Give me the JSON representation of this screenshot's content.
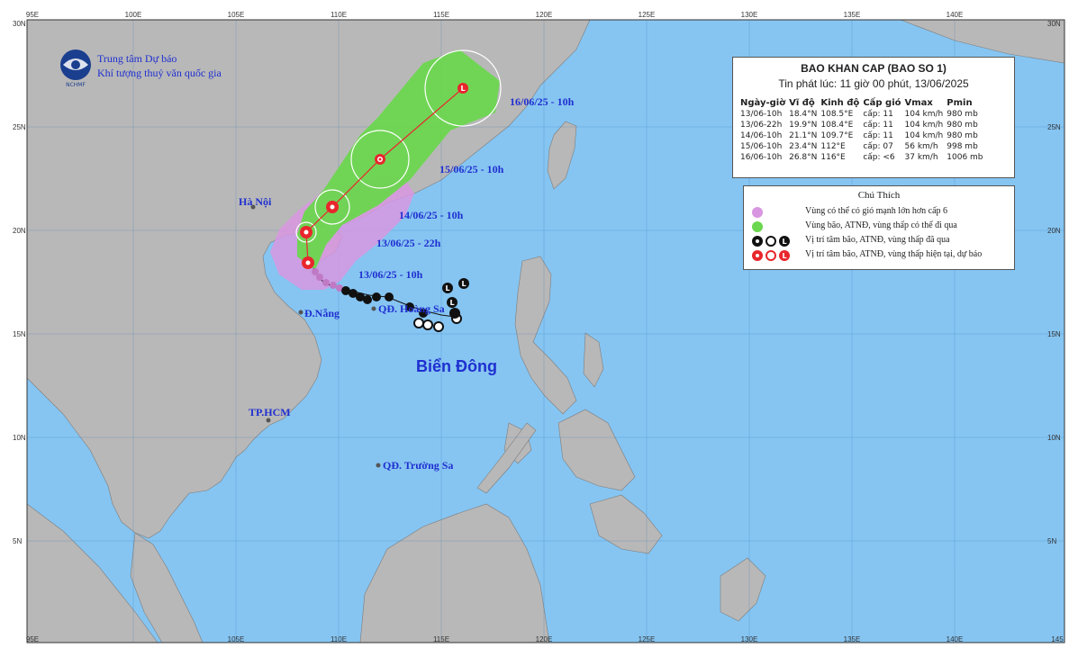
{
  "organization": {
    "name_line1": "Trung tâm Dự báo",
    "name_line2": "Khí tượng thuỷ văn quốc gia",
    "logo_text": "NCHMF"
  },
  "bulletin": {
    "title": "BAO KHAN CAP (BAO SO 1)",
    "issued": "Tin phát lúc: 11 giờ 00 phút, 13/06/2025",
    "columns": [
      "Ngày-giờ",
      "Vĩ độ",
      "Kinh độ",
      "Cấp gió",
      "Vmax",
      "Pmin"
    ],
    "rows": [
      [
        "13/06-10h",
        "18.4°N",
        "108.5°E",
        "cấp: 11",
        "104 km/h",
        "980 mb"
      ],
      [
        "13/06-22h",
        "19.9°N",
        "108.4°E",
        "cấp: 11",
        "104 km/h",
        "980 mb"
      ],
      [
        "14/06-10h",
        "21.1°N",
        "109.7°E",
        "cấp: 11",
        "104 km/h",
        "980 mb"
      ],
      [
        "15/06-10h",
        "23.4°N",
        "112°E",
        "cấp: 07",
        "56 km/h",
        "998 mb"
      ],
      [
        "16/06-10h",
        "26.8°N",
        "116°E",
        "cấp: <6",
        "37 km/h",
        "1006 mb"
      ]
    ]
  },
  "legend": {
    "title": "Chú Thích",
    "items": [
      {
        "text": "Vùng có thể có gió mạnh lớn hơn cấp 6",
        "color": "#d896e0"
      },
      {
        "text": "Vùng bão, ATNĐ, vùng thấp có thể đi qua",
        "color": "#6bd64f"
      },
      {
        "text": "Vị trí tâm bão, ATNĐ, vùng thấp đã qua",
        "color": "#111111"
      },
      {
        "text": "Vị trí tâm bão, ATNĐ, vùng thấp hiện tại, dự báo",
        "color": "#e8262c"
      }
    ]
  },
  "map_labels": {
    "ha_noi": "Hà Nội",
    "da_nang": "Đ.Nẵng",
    "hoang_sa": "QĐ. Hoàng Sa",
    "tphcm": "TP.HCM",
    "truong_sa": "QĐ. Trường Sa",
    "bien_dong": "Biển Đông"
  },
  "forecast_labels": {
    "f1": "13/06/25 - 10h",
    "f2": "13/06/25 - 22h",
    "f3": "14/06/25 - 10h",
    "f4": "15/06/25 - 10h",
    "f5": "16/06/25 - 10h"
  },
  "axes": {
    "lon_top": [
      "95E",
      "100E",
      "105E",
      "110E",
      "115E",
      "120E",
      "125E",
      "130E",
      "135E",
      "140E"
    ],
    "lon_bottom": [
      "95E",
      "105E",
      "110E",
      "115E",
      "120E",
      "125E",
      "130E",
      "135E",
      "140E",
      "145"
    ],
    "lat_left": [
      "30N",
      "25N",
      "20N",
      "15N",
      "10N",
      "5N"
    ],
    "lat_right": [
      "30N",
      "25N",
      "20N",
      "15N",
      "10N",
      "5N"
    ]
  },
  "colors": {
    "sea": "#86c5f2",
    "land": "#b8b8b8",
    "wind_zone": "#d896e0",
    "storm_zone": "#6bd64f",
    "track": "#e8262c",
    "past": "#111111"
  }
}
